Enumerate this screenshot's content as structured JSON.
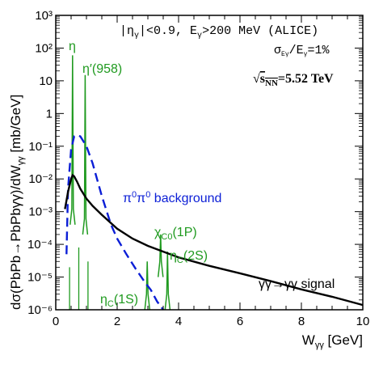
{
  "chart_data": {
    "type": "line",
    "xlabel": "Wγγ [GeV]",
    "ylabel": "dσ(PbPb→PbPbγγ)/dWγγ [mb/GeV]",
    "xlim": [
      0,
      10
    ],
    "ylim": [
      1e-06,
      1000
    ],
    "yscale": "log",
    "x_ticks": [
      "0",
      "2",
      "4",
      "6",
      "8",
      "10"
    ],
    "y_ticks": [
      "10⁻⁶",
      "10⁻⁵",
      "10⁻⁴",
      "10⁻³",
      "10⁻²",
      "10⁻¹",
      "1",
      "10",
      "10²",
      "10³"
    ],
    "header": "|ηγ|<0.9, Eγ>200 MeV (ALICE)",
    "resolution_note": "σEγ/Eγ=1%",
    "energy_note": "√sNN=5.52 TeV",
    "colors": {
      "signal": "#000000",
      "background": "#0b1ed6",
      "resonances": "#1f9a1f"
    },
    "series": [
      {
        "name": "γγ→γγ signal",
        "style": "solid",
        "x": [
          0.3,
          0.4,
          0.5,
          0.55,
          0.6,
          0.7,
          0.8,
          1.0,
          1.2,
          1.5,
          2.0,
          2.5,
          3.0,
          3.5,
          4.0,
          5.0,
          6.0,
          7.0,
          8.0,
          9.0,
          10.0
        ],
        "y": [
          0.0012,
          0.004,
          0.01,
          0.013,
          0.012,
          0.008,
          0.005,
          0.0025,
          0.0015,
          0.0008,
          0.0003,
          0.00015,
          9e-05,
          6e-05,
          4e-05,
          2.2e-05,
          1.3e-05,
          7.5e-06,
          4.2e-06,
          2.5e-06,
          1.4e-06
        ]
      },
      {
        "name": "π⁰π⁰ background",
        "style": "dashed",
        "x": [
          0.35,
          0.4,
          0.5,
          0.6,
          0.7,
          0.8,
          1.0,
          1.2,
          1.5,
          1.8,
          2.0,
          2.3,
          2.6,
          2.9,
          3.1,
          3.3,
          3.5
        ],
        "y": [
          5e-05,
          0.005,
          0.08,
          0.2,
          0.22,
          0.2,
          0.1,
          0.03,
          0.003,
          0.0004,
          0.00015,
          5e-05,
          1.8e-05,
          7e-06,
          4e-06,
          1.8e-06,
          1e-06
        ]
      },
      {
        "name": "resonances",
        "style": "solid",
        "peaks": [
          {
            "label": "η",
            "x": 0.548,
            "y": 60,
            "baseline": 0.0004
          },
          {
            "label": "η′(958)",
            "x": 0.958,
            "y": 15,
            "baseline": 0.0002
          },
          {
            "label": "χC0(1P)",
            "x": 3.415,
            "y": 0.0002,
            "baseline": 1e-05
          },
          {
            "label": "ηC(1S)",
            "x": 2.98,
            "y": 3e-05,
            "baseline": 1e-06
          },
          {
            "label": "ηC(2S)",
            "x": 3.64,
            "y": 6e-05,
            "baseline": 1e-06
          }
        ]
      }
    ]
  }
}
